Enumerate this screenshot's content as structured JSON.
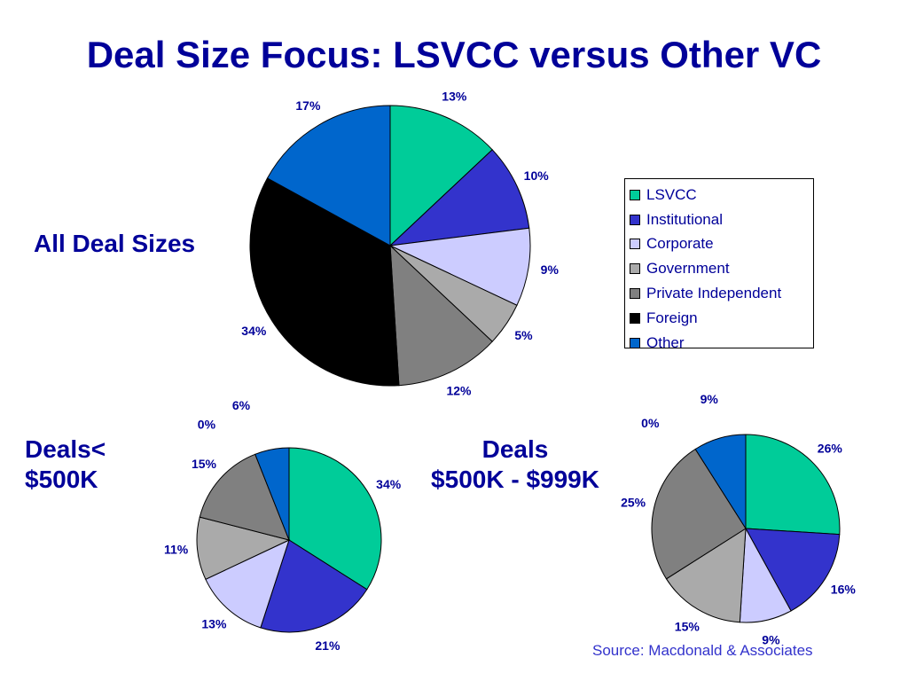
{
  "title": "Deal Size Focus: LSVCC versus Other VC",
  "labels": {
    "all": "All Deal Sizes",
    "small": [
      "Deals<",
      "$500K"
    ],
    "medium": [
      "Deals",
      "$500K - $999K"
    ]
  },
  "source": "Source: Macdonald & Associates",
  "colors": {
    "LSVCC": "#00cc99",
    "Institutional": "#3333cc",
    "Corporate": "#ccccff",
    "Government": "#aaaaaa",
    "Private Independent": "#808080",
    "Foreign": "#000000",
    "Other": "#0066cc"
  },
  "chart_data": [
    {
      "type": "pie",
      "title": "All Deal Sizes",
      "categories": [
        "LSVCC",
        "Institutional",
        "Corporate",
        "Government",
        "Private Independent",
        "Foreign",
        "Other"
      ],
      "values": [
        13,
        10,
        9,
        5,
        12,
        34,
        17
      ],
      "labels": [
        "13%",
        "10%",
        "9%",
        "5%",
        "12%",
        "34%",
        "17%"
      ],
      "legend": "right"
    },
    {
      "type": "pie",
      "title": "Deals< $500K",
      "categories": [
        "LSVCC",
        "Institutional",
        "Corporate",
        "Government",
        "Private Independent",
        "Foreign",
        "Other"
      ],
      "values": [
        34,
        21,
        13,
        11,
        15,
        0,
        6
      ],
      "labels": [
        "34%",
        "21%",
        "13%",
        "11%",
        "15%",
        "0%",
        "6%"
      ]
    },
    {
      "type": "pie",
      "title": "Deals $500K - $999K",
      "categories": [
        "LSVCC",
        "Institutional",
        "Corporate",
        "Government",
        "Private Independent",
        "Foreign",
        "Other"
      ],
      "values": [
        26,
        16,
        9,
        15,
        25,
        0,
        9
      ],
      "labels": [
        "26%",
        "16%",
        "9%",
        "15%",
        "25%",
        "0%",
        "9%"
      ]
    }
  ]
}
